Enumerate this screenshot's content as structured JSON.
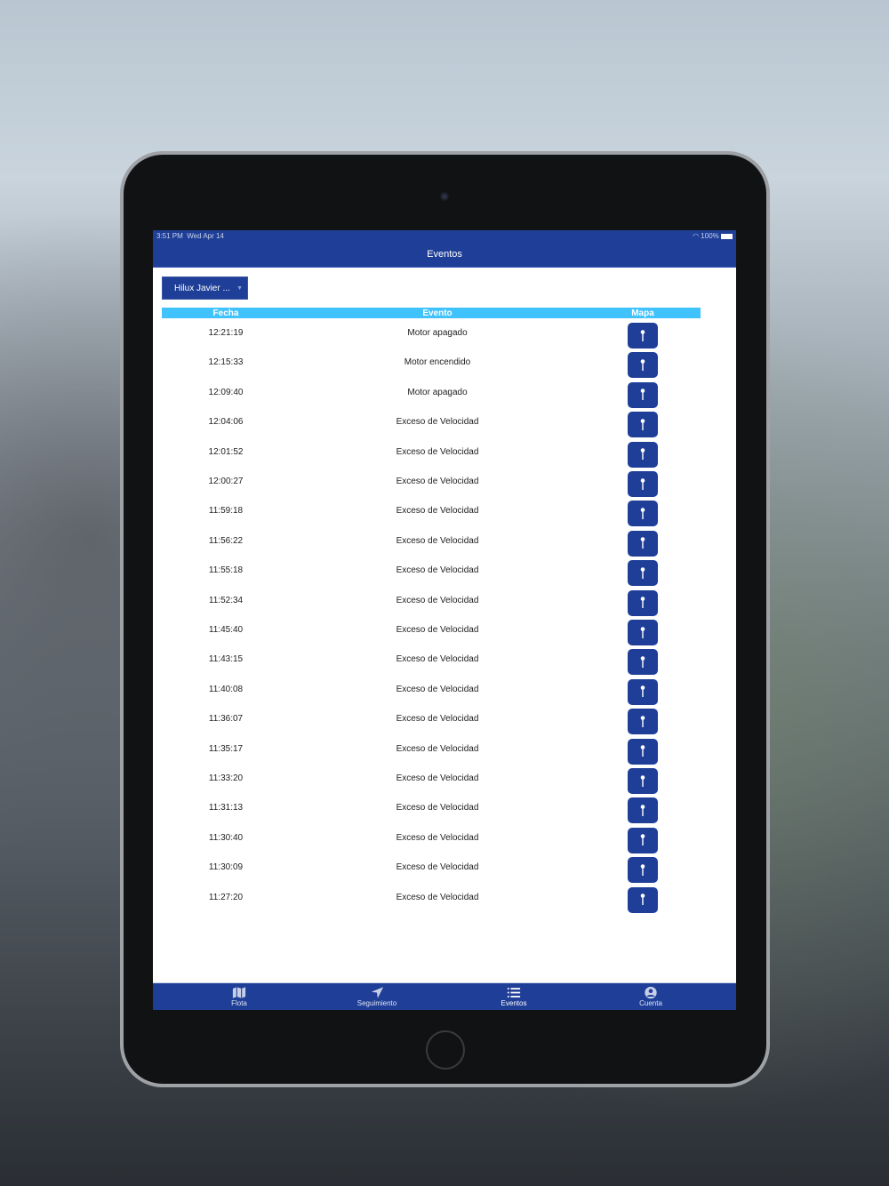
{
  "status": {
    "time": "3:51 PM",
    "date": "Wed Apr 14",
    "battery": "100%"
  },
  "navbar": {
    "title": "Eventos"
  },
  "picker": {
    "value": "Hilux Javier ..."
  },
  "table": {
    "headers": [
      "Fecha",
      "Evento",
      "Mapa"
    ],
    "rows": [
      {
        "time": "12:21:19",
        "event": "Motor apagado"
      },
      {
        "time": "12:15:33",
        "event": "Motor encendido"
      },
      {
        "time": "12:09:40",
        "event": "Motor apagado"
      },
      {
        "time": "12:04:06",
        "event": "Exceso de Velocidad"
      },
      {
        "time": "12:01:52",
        "event": "Exceso de Velocidad"
      },
      {
        "time": "12:00:27",
        "event": "Exceso de Velocidad"
      },
      {
        "time": "11:59:18",
        "event": "Exceso de Velocidad"
      },
      {
        "time": "11:56:22",
        "event": "Exceso de Velocidad"
      },
      {
        "time": "11:55:18",
        "event": "Exceso de Velocidad"
      },
      {
        "time": "11:52:34",
        "event": "Exceso de Velocidad"
      },
      {
        "time": "11:45:40",
        "event": "Exceso de Velocidad"
      },
      {
        "time": "11:43:15",
        "event": "Exceso de Velocidad"
      },
      {
        "time": "11:40:08",
        "event": "Exceso de Velocidad"
      },
      {
        "time": "11:36:07",
        "event": "Exceso de Velocidad"
      },
      {
        "time": "11:35:17",
        "event": "Exceso de Velocidad"
      },
      {
        "time": "11:33:20",
        "event": "Exceso de Velocidad"
      },
      {
        "time": "11:31:13",
        "event": "Exceso de Velocidad"
      },
      {
        "time": "11:30:40",
        "event": "Exceso de Velocidad"
      },
      {
        "time": "11:30:09",
        "event": "Exceso de Velocidad"
      },
      {
        "time": "11:27:20",
        "event": "Exceso de Velocidad"
      }
    ]
  },
  "tabs": [
    {
      "label": "Flota",
      "icon": "map-icon"
    },
    {
      "label": "Seguimiento",
      "icon": "location-arrow-icon"
    },
    {
      "label": "Eventos",
      "icon": "list-icon",
      "active": true
    },
    {
      "label": "Cuenta",
      "icon": "user-circle-icon"
    }
  ],
  "colors": {
    "primary": "#1f3e97",
    "header": "#40c2fc"
  }
}
